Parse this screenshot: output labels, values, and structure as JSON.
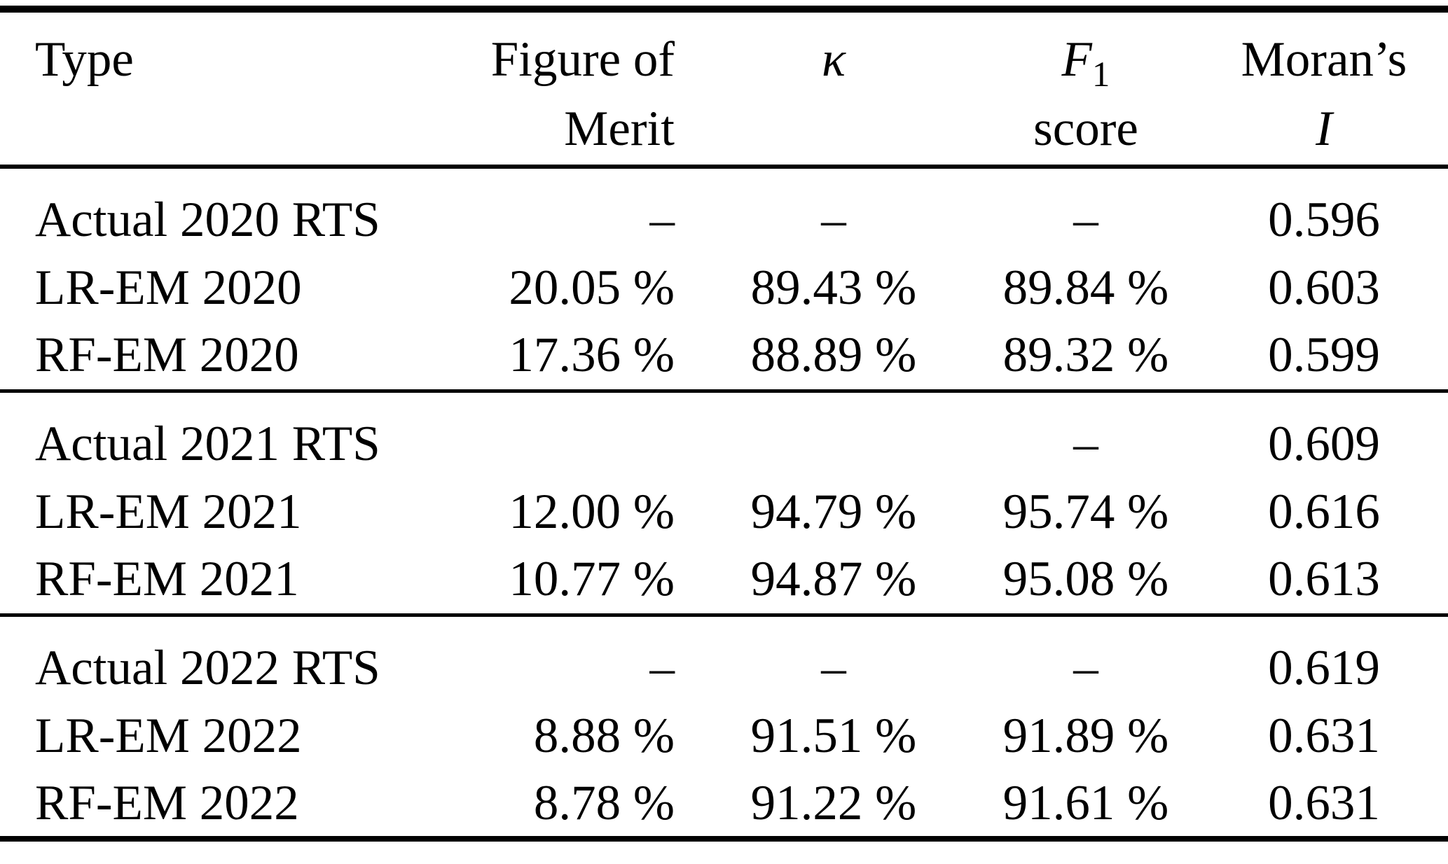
{
  "colors": {
    "background": "#ffffff",
    "text": "#000000",
    "rule": "#000000"
  },
  "table": {
    "header": {
      "type": "Type",
      "fom_line1": "Figure of",
      "fom_line2": "Merit",
      "kappa": "κ",
      "f1_symbol": "F",
      "f1_subscript": "1",
      "f1_line2": "score",
      "moran_line1": "Moran’s",
      "moran_line2": "I"
    },
    "sections": [
      {
        "rows": [
          {
            "type": "Actual 2020 RTS",
            "fom": "–",
            "kappa": "–",
            "f1": "–",
            "moran": "0.596"
          },
          {
            "type": "LR-EM 2020",
            "fom": "20.05 %",
            "kappa": "89.43 %",
            "f1": "89.84 %",
            "moran": "0.603"
          },
          {
            "type": "RF-EM 2020",
            "fom": "17.36 %",
            "kappa": "88.89 %",
            "f1": "89.32 %",
            "moran": "0.599"
          }
        ]
      },
      {
        "rows": [
          {
            "type": "Actual 2021 RTS",
            "fom": "",
            "kappa": "",
            "f1": "–",
            "moran": "0.609"
          },
          {
            "type": "LR-EM 2021",
            "fom": "12.00 %",
            "kappa": "94.79 %",
            "f1": "95.74 %",
            "moran": "0.616"
          },
          {
            "type": "RF-EM 2021",
            "fom": "10.77 %",
            "kappa": "94.87 %",
            "f1": "95.08 %",
            "moran": "0.613"
          }
        ]
      },
      {
        "rows": [
          {
            "type": "Actual 2022 RTS",
            "fom": "–",
            "kappa": "–",
            "f1": "–",
            "moran": "0.619"
          },
          {
            "type": "LR-EM 2022",
            "fom": "8.88 %",
            "kappa": "91.51 %",
            "f1": "91.89 %",
            "moran": "0.631"
          },
          {
            "type": "RF-EM 2022",
            "fom": "8.78 %",
            "kappa": "91.22 %",
            "f1": "91.61 %",
            "moran": "0.631"
          }
        ]
      }
    ]
  }
}
